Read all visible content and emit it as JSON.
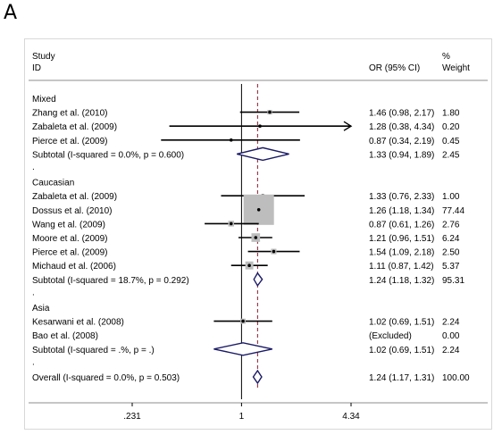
{
  "panel_letter": "A",
  "header": {
    "study_line1": "Study",
    "study_line2": "ID",
    "or_label": "OR (95% CI)",
    "weight_line1": "%",
    "weight_line2": "Weight"
  },
  "colors": {
    "frame_border": "#d8d8d8",
    "line": "#000000",
    "box_fill": "#bdbdbd",
    "diamond_stroke": "#1a1a66",
    "reference_line": "#8b1a2b"
  },
  "chart_data": {
    "type": "forest",
    "x_scale": "log",
    "x_ticks": [
      {
        "value": 0.231,
        "label": ".231"
      },
      {
        "value": 1,
        "label": "1"
      },
      {
        "value": 4.34,
        "label": "4.34"
      }
    ],
    "null_line": 1,
    "overall_line": 1.24,
    "groups": [
      {
        "name": "Mixed",
        "studies": [
          {
            "label": "Zhang et al. (2010)",
            "or": 1.46,
            "lo": 0.98,
            "hi": 2.17,
            "ci_text": "1.46 (0.98, 2.17)",
            "weight": 1.8,
            "weight_text": "1.80"
          },
          {
            "label": "Zabaleta et al. (2009)",
            "or": 1.28,
            "lo": 0.38,
            "hi": 4.34,
            "ci_text": "1.28 (0.38, 4.34)",
            "weight": 0.2,
            "weight_text": "0.20",
            "arrow_right": true
          },
          {
            "label": "Pierce et al. (2009)",
            "or": 0.87,
            "lo": 0.34,
            "hi": 2.19,
            "ci_text": "0.87 (0.34, 2.19)",
            "weight": 0.45,
            "weight_text": "0.45"
          }
        ],
        "subtotal": {
          "label": "Subtotal  (I-squared = 0.0%, p = 0.600)",
          "or": 1.33,
          "lo": 0.94,
          "hi": 1.89,
          "ci_text": "1.33 (0.94, 1.89)",
          "weight_text": "2.45"
        }
      },
      {
        "name": "Caucasian",
        "studies": [
          {
            "label": "Zabaleta et al. (2009)",
            "or": 1.33,
            "lo": 0.76,
            "hi": 2.33,
            "ci_text": "1.33 (0.76, 2.33)",
            "weight": 1.0,
            "weight_text": "1.00"
          },
          {
            "label": "Dossus et al. (2010)",
            "or": 1.26,
            "lo": 1.18,
            "hi": 1.34,
            "ci_text": "1.26 (1.18, 1.34)",
            "weight": 77.44,
            "weight_text": "77.44"
          },
          {
            "label": "Wang et al. (2009)",
            "or": 0.87,
            "lo": 0.61,
            "hi": 1.26,
            "ci_text": "0.87 (0.61, 1.26)",
            "weight": 2.76,
            "weight_text": "2.76"
          },
          {
            "label": "Moore et al. (2009)",
            "or": 1.21,
            "lo": 0.96,
            "hi": 1.51,
            "ci_text": "1.21 (0.96, 1.51)",
            "weight": 6.24,
            "weight_text": "6.24"
          },
          {
            "label": "Pierce et al. (2009)",
            "or": 1.54,
            "lo": 1.09,
            "hi": 2.18,
            "ci_text": "1.54 (1.09, 2.18)",
            "weight": 2.5,
            "weight_text": "2.50"
          },
          {
            "label": "Michaud et al. (2006)",
            "or": 1.11,
            "lo": 0.87,
            "hi": 1.42,
            "ci_text": "1.11 (0.87, 1.42)",
            "weight": 5.37,
            "weight_text": "5.37"
          }
        ],
        "subtotal": {
          "label": "Subtotal  (I-squared = 18.7%, p = 0.292)",
          "or": 1.24,
          "lo": 1.18,
          "hi": 1.32,
          "ci_text": "1.24 (1.18, 1.32)",
          "weight_text": "95.31"
        }
      },
      {
        "name": "Asia",
        "studies": [
          {
            "label": "Kesarwani et al. (2008)",
            "or": 1.02,
            "lo": 0.69,
            "hi": 1.51,
            "ci_text": "1.02 (0.69, 1.51)",
            "weight": 2.24,
            "weight_text": "2.24"
          },
          {
            "label": "Bao et al. (2008)",
            "or": null,
            "lo": null,
            "hi": null,
            "ci_text": "(Excluded)",
            "weight": 0,
            "weight_text": "0.00"
          }
        ],
        "subtotal": {
          "label": "Subtotal  (I-squared = .%, p = .)",
          "or": 1.02,
          "lo": 0.69,
          "hi": 1.51,
          "ci_text": "1.02 (0.69, 1.51)",
          "weight_text": "2.24"
        }
      }
    ],
    "overall": {
      "label": "Overall  (I-squared = 0.0%, p = 0.503)",
      "or": 1.24,
      "lo": 1.17,
      "hi": 1.31,
      "ci_text": "1.24 (1.17, 1.31)",
      "weight_text": "100.00"
    }
  }
}
